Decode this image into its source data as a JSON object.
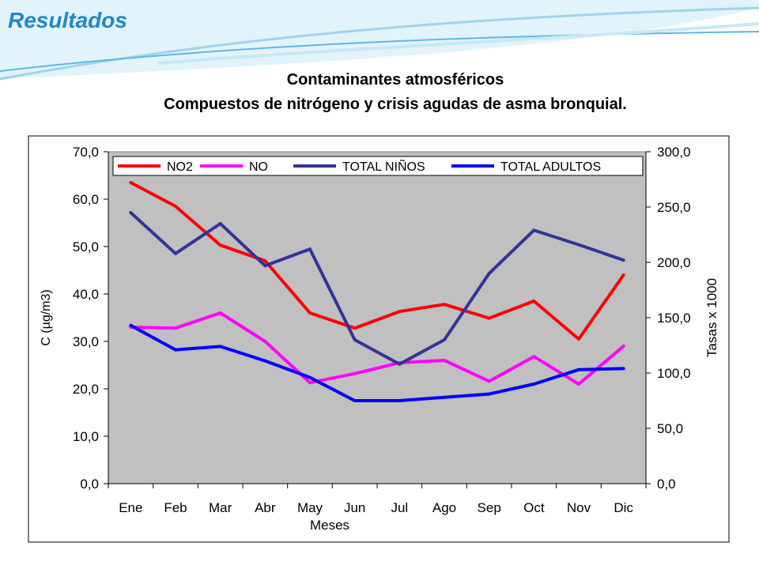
{
  "header": {
    "title": "Resultados",
    "heading_line1": "Contaminantes atmosféricos",
    "heading_line2": "Compuestos de nitrógeno y  crisis agudas de asma bronquial."
  },
  "colors": {
    "title": "#1f87c9",
    "plot_background": "#c0c0c0"
  },
  "chart_data": {
    "type": "line",
    "xlabel": "Meses",
    "ylabel": "C (µg/m3)",
    "y2label": "Tasas x 1000",
    "categories": [
      "Ene",
      "Feb",
      "Mar",
      "Abr",
      "May",
      "Jun",
      "Jul",
      "Ago",
      "Sep",
      "Oct",
      "Nov",
      "Dic"
    ],
    "ylim": [
      0,
      70
    ],
    "y_ticks": [
      "0,0",
      "10,0",
      "20,0",
      "30,0",
      "40,0",
      "50,0",
      "60,0",
      "70,0"
    ],
    "y2lim": [
      0,
      300
    ],
    "y2_ticks": [
      "0,0",
      "50,0",
      "100,0",
      "150,0",
      "200,0",
      "250,0",
      "300,0"
    ],
    "grid": false,
    "legend_position": "top",
    "series": [
      {
        "name": "NO2",
        "axis": "left",
        "color": "#ff0000",
        "values": [
          63.5,
          58.5,
          50.3,
          47.0,
          36.0,
          32.8,
          36.3,
          37.8,
          34.9,
          38.5,
          30.5,
          44.0
        ]
      },
      {
        "name": "NO",
        "axis": "left",
        "color": "#ff00ff",
        "values": [
          33.0,
          32.8,
          36.0,
          30.0,
          21.3,
          23.2,
          25.5,
          26.0,
          21.6,
          26.8,
          21.0,
          29.0
        ]
      },
      {
        "name": "TOTAL NIÑOS",
        "axis": "right",
        "color": "#333399",
        "values": [
          245.0,
          208.0,
          235.0,
          197.0,
          212.0,
          130.0,
          108.0,
          130.0,
          190.0,
          229.0,
          216.0,
          202.0
        ]
      },
      {
        "name": "TOTAL ADULTOS",
        "axis": "right",
        "color": "#0000ff",
        "values": [
          143.0,
          121.0,
          124.0,
          111.0,
          96.0,
          75.0,
          75.0,
          78.0,
          81.0,
          90.0,
          103.0,
          104.0
        ]
      }
    ]
  }
}
